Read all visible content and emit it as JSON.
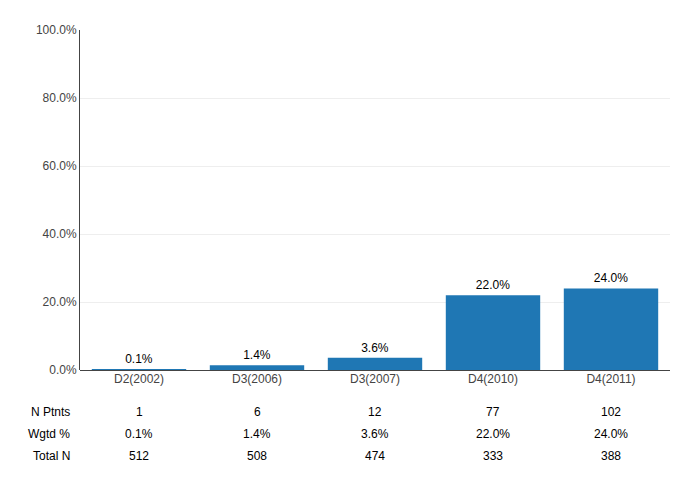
{
  "chart_data": {
    "type": "bar",
    "categories": [
      "D2(2002)",
      "D3(2006)",
      "D3(2007)",
      "D4(2010)",
      "D4(2011)"
    ],
    "values": [
      0.1,
      1.4,
      3.6,
      22.0,
      24.0
    ],
    "value_labels": [
      "0.1%",
      "1.4%",
      "3.6%",
      "22.0%",
      "24.0%"
    ],
    "data_labels": true,
    "ylim": [
      0,
      100
    ],
    "yticks": [
      {
        "value": 0,
        "label": "0.0%"
      },
      {
        "value": 20,
        "label": "20.0%"
      },
      {
        "value": 40,
        "label": "40.0%"
      },
      {
        "value": 60,
        "label": "60.0%"
      },
      {
        "value": 80,
        "label": "80.0%"
      },
      {
        "value": 100,
        "label": "100.0%"
      }
    ],
    "grid": true,
    "table": [
      {
        "label": "N Ptnts",
        "values": [
          1,
          6,
          12,
          77,
          102
        ]
      },
      {
        "label": "Wgtd %",
        "values": [
          0.1,
          1.4,
          3.6,
          22.0,
          24.0
        ],
        "value_labels": [
          "0.1%",
          "1.4%",
          "3.6%",
          "22.0%",
          "24.0%"
        ]
      },
      {
        "label": "Total N",
        "values": [
          512,
          508,
          474,
          333,
          388
        ]
      }
    ]
  }
}
